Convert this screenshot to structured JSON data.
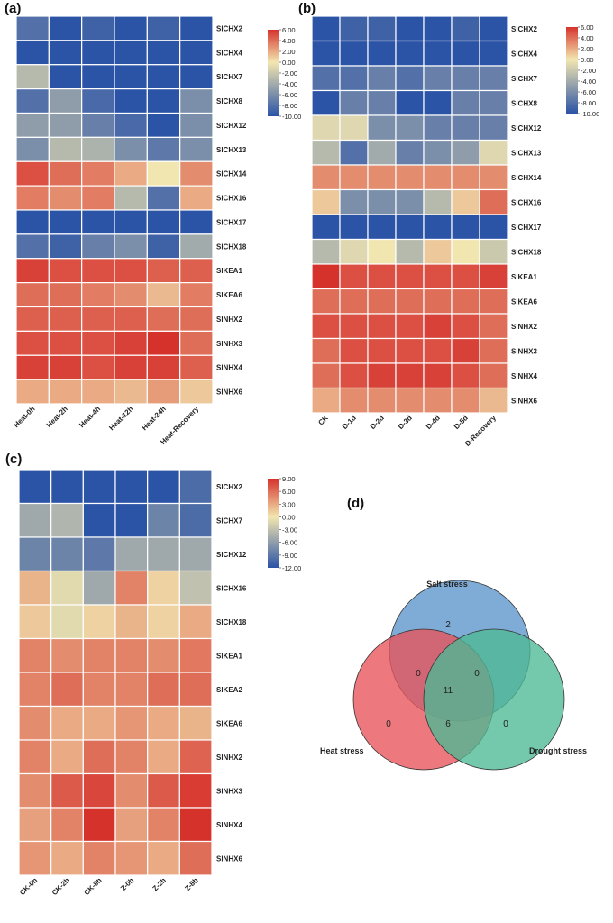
{
  "chart_data": [
    {
      "panel": "(a)",
      "type": "heatmap",
      "columns": [
        "Heat-0h",
        "Heat-2h",
        "Heat-4h",
        "Heat-12h",
        "Heat-24h",
        "Heat-Recovery"
      ],
      "rows": [
        "SlCHX2",
        "SlCHX4",
        "SlCHX7",
        "SlCHX8",
        "SlCHX12",
        "SlCHX13",
        "SlCHX14",
        "SlCHX16",
        "SlCHX17",
        "SlCHX18",
        "SlKEA1",
        "SlKEA6",
        "SlNHX2",
        "SlNHX3",
        "SlNHX4",
        "SlNHX6"
      ],
      "values": [
        [
          -8,
          -10,
          -9,
          -10,
          -9,
          -10
        ],
        [
          -10,
          -10,
          -10,
          -10,
          -10,
          -10
        ],
        [
          -3,
          -10,
          -10,
          -10,
          -10,
          -10
        ],
        [
          -8,
          -5,
          -8.5,
          -10,
          -10,
          -6
        ],
        [
          -5,
          -5,
          -7,
          -8.5,
          -10,
          -6
        ],
        [
          -6,
          -3,
          -3.5,
          -6,
          -7.5,
          -6
        ],
        [
          5,
          4,
          3.5,
          2,
          0,
          3
        ],
        [
          3.5,
          3,
          3.5,
          -3,
          -8,
          2
        ],
        [
          -10,
          -10,
          -10,
          -10,
          -10,
          -10
        ],
        [
          -8,
          -9,
          -7,
          -6,
          -9,
          -4
        ],
        [
          5.5,
          5,
          5,
          5,
          4.5,
          4.5
        ],
        [
          4,
          4,
          3.5,
          3,
          1.5,
          3.5
        ],
        [
          4.5,
          4.5,
          4.5,
          4.5,
          4,
          4
        ],
        [
          5,
          5,
          5,
          5.5,
          6,
          4
        ],
        [
          5.5,
          5.5,
          5,
          5.5,
          5.5,
          4.5
        ],
        [
          2,
          2,
          2,
          1.5,
          2.5,
          1
        ]
      ],
      "colorbar": {
        "ticks": [
          "6.00",
          "4.00",
          "2.00",
          "0.00",
          "-2.00",
          "-4.00",
          "-6.00",
          "-8.00",
          "-10.00"
        ],
        "min": -10,
        "max": 6
      }
    },
    {
      "panel": "(b)",
      "type": "heatmap",
      "columns": [
        "CK",
        "D-1d",
        "D-2d",
        "D-3d",
        "D-4d",
        "D-5d",
        "D-Recovery"
      ],
      "rows": [
        "SlCHX2",
        "SlCHX4",
        "SlCHX7",
        "SlCHX8",
        "SlCHX12",
        "SlCHX13",
        "SlCHX14",
        "SlCHX16",
        "SlCHX17",
        "SlCHX18",
        "SlKEA1",
        "SlKEA6",
        "SlNHX2",
        "SlNHX3",
        "SlNHX4",
        "SlNHX6"
      ],
      "values": [
        [
          -10,
          -9,
          -9,
          -10,
          -10,
          -9,
          -10
        ],
        [
          -10,
          -10,
          -10,
          -10,
          -10,
          -10,
          -10
        ],
        [
          -8,
          -8,
          -7,
          -8,
          -7,
          -7,
          -7
        ],
        [
          -10,
          -7,
          -7,
          -10,
          -10,
          -7,
          -7
        ],
        [
          -1,
          -1,
          -6,
          -6,
          -7,
          -7,
          -7
        ],
        [
          -3,
          -8,
          -4,
          -7,
          -6,
          -5,
          -1
        ],
        [
          3,
          3,
          3,
          3,
          3,
          3,
          3
        ],
        [
          1,
          -6,
          -6,
          -6,
          -3,
          1,
          4
        ],
        [
          -10,
          -10,
          -10,
          -10,
          -10,
          -10,
          -10
        ],
        [
          -3,
          -1,
          0,
          -3,
          1,
          0,
          -2
        ],
        [
          6,
          5,
          5,
          5,
          5,
          5,
          5.5
        ],
        [
          4,
          4,
          4,
          4,
          4,
          4,
          4
        ],
        [
          5,
          5,
          5,
          5,
          5.5,
          5,
          4
        ],
        [
          4,
          5,
          5,
          5,
          5,
          5.5,
          4
        ],
        [
          4,
          5,
          5.5,
          5.5,
          5.5,
          5,
          4
        ],
        [
          2,
          3,
          3,
          3,
          3,
          3,
          1.5
        ]
      ],
      "colorbar": {
        "ticks": [
          "6.00",
          "4.00",
          "2.00",
          "0.00",
          "-2.00",
          "-4.00",
          "-6.00",
          "-8.00",
          "-10.00"
        ],
        "min": -10,
        "max": 6
      }
    },
    {
      "panel": "(c)",
      "type": "heatmap",
      "columns": [
        "CK-0h",
        "CK-2h",
        "CK-8h",
        "Z-0h",
        "Z-2h",
        "Z-8h"
      ],
      "rows": [
        "SlCHX2",
        "SlCHX7",
        "SlCHX12",
        "SlCHX16",
        "SlCHX18",
        "SlKEA1",
        "SlKEA2",
        "SlKEA6",
        "SlNHX2",
        "SlNHX3",
        "SlNHX4",
        "SlNHX6"
      ],
      "values": [
        [
          -12,
          -12,
          -12,
          -12,
          -12,
          -10
        ],
        [
          -5,
          -4,
          -12,
          -12,
          -8,
          -10
        ],
        [
          -8,
          -8,
          -9,
          -5,
          -5,
          -5
        ],
        [
          2.5,
          -1,
          -5,
          5,
          1,
          -3
        ],
        [
          1.5,
          -1,
          1,
          2.5,
          1,
          3
        ],
        [
          5,
          4.5,
          5,
          5,
          4.5,
          5.5
        ],
        [
          5,
          6,
          5,
          5,
          6,
          6
        ],
        [
          4.5,
          3,
          3,
          4,
          3,
          2.5
        ],
        [
          5,
          3,
          6,
          5,
          3,
          6.5
        ],
        [
          4.5,
          7,
          8,
          4.5,
          7,
          8.5
        ],
        [
          3.5,
          5,
          9,
          3.5,
          5,
          9
        ],
        [
          4,
          3,
          5,
          4,
          3,
          6
        ]
      ],
      "colorbar": {
        "ticks": [
          "9.00",
          "6.00",
          "3.00",
          "0.00",
          "-3.00",
          "-6.00",
          "-9.00",
          "-12.00"
        ],
        "min": -12,
        "max": 9
      }
    },
    {
      "panel": "(d)",
      "type": "venn",
      "sets": [
        {
          "name": "Salt stress",
          "color": "#5b95cc"
        },
        {
          "name": "Heat stress",
          "color": "#e8535a"
        },
        {
          "name": "Drought stress",
          "color": "#4db894"
        }
      ],
      "regions": {
        "salt_only": "2",
        "heat_only": "0",
        "drought_only": "0",
        "salt_heat": "0",
        "salt_drought": "0",
        "heat_drought": "6",
        "all_three": "11"
      }
    }
  ],
  "colors": {
    "low": "#2b53a6",
    "mid": "#f2e6b0",
    "high": "#d6322c",
    "grid": "#ffffff"
  }
}
